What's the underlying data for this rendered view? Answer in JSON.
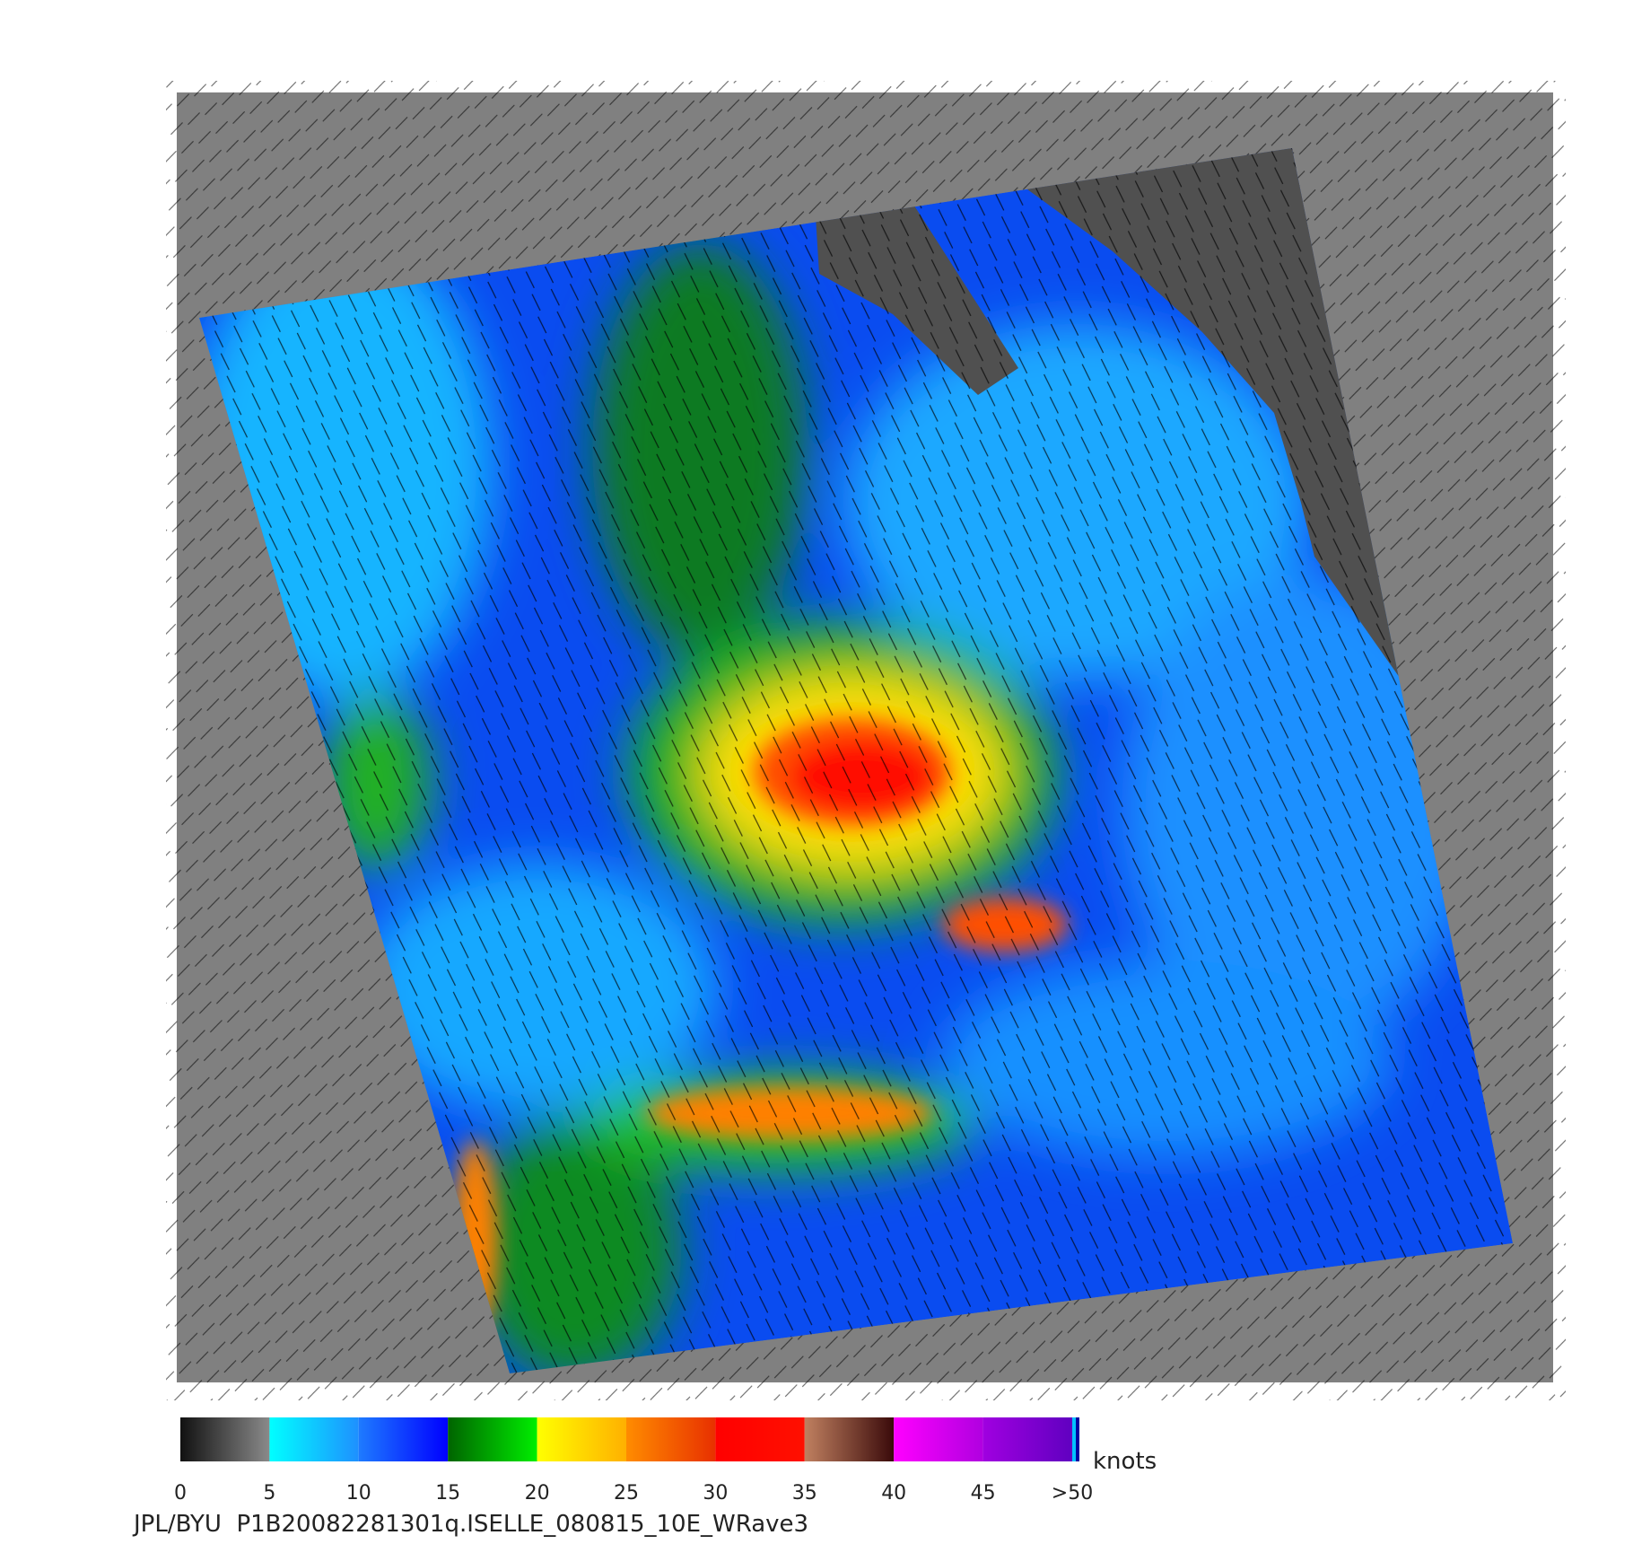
{
  "colorbar": {
    "ticks": [
      0,
      5,
      10,
      15,
      20,
      25,
      30,
      35,
      40,
      45,
      {
        "value": 50,
        "label": ">50"
      }
    ],
    "colors": [
      [
        "#111111",
        "#8a8a8a"
      ],
      [
        "#00ffff",
        "#1e90ff"
      ],
      [
        "#1e7bff",
        "#0000ff"
      ],
      [
        "#006400",
        "#00ee00"
      ],
      [
        "#ffff00",
        "#ffb000"
      ],
      [
        "#ff8c00",
        "#e83000"
      ],
      [
        "#ff0000",
        "#ff1000"
      ],
      [
        "#c08060",
        "#3a0a0a"
      ],
      [
        "#ff00ff",
        "#b000e0"
      ],
      [
        "#a000e0",
        "#6000c0"
      ]
    ],
    "unit": "knots"
  },
  "caption": "JPL/BYU  P1B20082281301q.ISELLE_080815_10E_WRave3"
}
